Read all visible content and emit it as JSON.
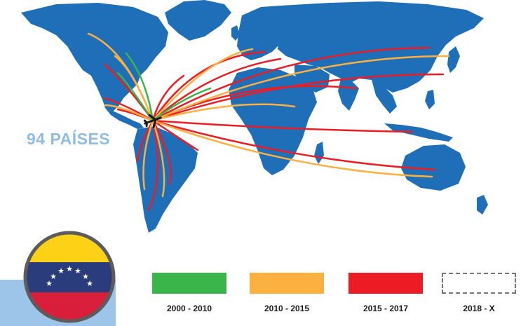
{
  "map": {
    "countries_label": "94 PAÍSES",
    "ocean_color": "#ffffff",
    "land_color": "#1f6fb8",
    "origin": "Venezuela",
    "route_colors": {
      "2000-2010": "#3ab54a",
      "2010-2015": "#fbb040",
      "2015-2017": "#ed1c24"
    }
  },
  "legend": [
    {
      "period": "2000 - 2010",
      "color": "#3ab54a",
      "style": "solid"
    },
    {
      "period": "2010 - 2015",
      "color": "#fbb040",
      "style": "solid"
    },
    {
      "period": "2015 - 2017",
      "color": "#ed1c24",
      "style": "solid"
    },
    {
      "period": "2018 - X",
      "color": "#777777",
      "style": "dashed"
    }
  ],
  "flag": {
    "country": "Venezuela",
    "colors": [
      "#fcd116",
      "#2a3c7c",
      "#d81e3a"
    ]
  }
}
